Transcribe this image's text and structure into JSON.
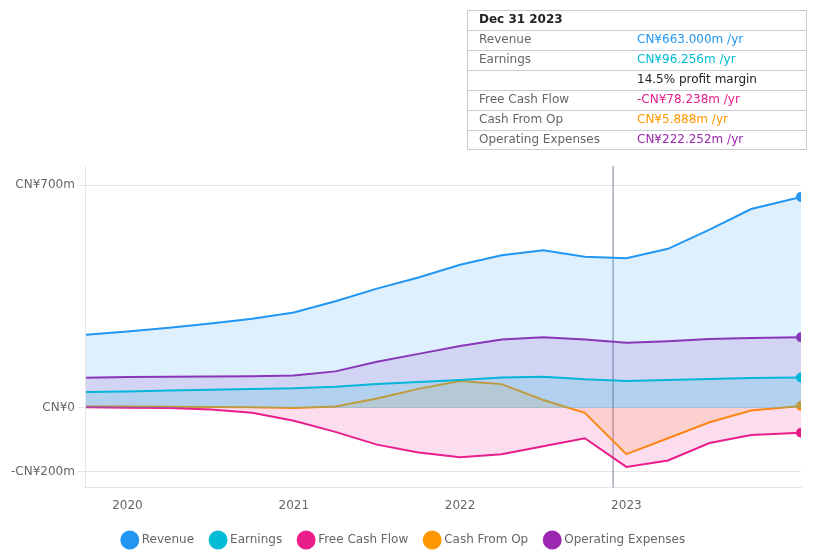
{
  "chart_data": {
    "type": "area",
    "x": [
      2019.75,
      2020.0,
      2020.25,
      2020.5,
      2020.75,
      2021.0,
      2021.25,
      2021.5,
      2021.75,
      2022.0,
      2022.25,
      2022.5,
      2022.75,
      2023.0,
      2023.25,
      2023.5,
      2023.75,
      2024.05
    ],
    "series": [
      {
        "name": "Revenue",
        "color": "#2196f3",
        "values": [
          230,
          240,
          252,
          265,
          280,
          300,
          335,
          375,
          410,
          450,
          480,
          495,
          475,
          470,
          500,
          560,
          625,
          663
        ]
      },
      {
        "name": "Earnings",
        "color": "#00bcd4",
        "values": [
          50,
          52,
          55,
          57,
          60,
          62,
          67,
          75,
          82,
          88,
          96,
          98,
          90,
          85,
          88,
          91,
          94,
          96
        ]
      },
      {
        "name": "Free Cash Flow",
        "color": "#e91e8c",
        "values": [
          2,
          1,
          0,
          -5,
          -15,
          -40,
          -75,
          -115,
          -140,
          -155,
          -145,
          -120,
          -95,
          -185,
          -165,
          -110,
          -85,
          -78
        ]
      },
      {
        "name": "Cash From Op",
        "color": "#ff9800",
        "values": [
          5,
          5,
          4,
          3,
          2,
          0,
          5,
          30,
          60,
          85,
          75,
          25,
          -15,
          -145,
          -95,
          -45,
          -8,
          6
        ]
      },
      {
        "name": "Operating Expenses",
        "color": "#9c27b0",
        "values": [
          95,
          97,
          98,
          99,
          100,
          102,
          115,
          145,
          170,
          195,
          215,
          222,
          215,
          205,
          210,
          217,
          220,
          222
        ]
      }
    ],
    "xlim": [
      2019.75,
      2024.05
    ],
    "xticks": [
      2020,
      2021,
      2022,
      2023
    ],
    "ylim": [
      -250,
      760
    ],
    "yticks": [
      {
        "value": -200,
        "label": "-CN¥200m"
      },
      {
        "value": 0,
        "label": "CN¥0"
      },
      {
        "value": 700,
        "label": "CN¥700m"
      }
    ],
    "grid": true,
    "legend": "bottom",
    "annotations": [
      {
        "x": 2022.92
      },
      {
        "rows": [
          [
            "Dec 31 2023"
          ],
          [
            "Revenue",
            "CN¥663.000m /yr"
          ],
          [
            "Earnings",
            "CN¥96.256m /yr"
          ],
          [
            "",
            "14.5% profit margin"
          ],
          [
            "Free Cash Flow",
            "-CN¥78.238m /yr"
          ],
          [
            "Cash From Op",
            "CN¥5.888m /yr"
          ],
          [
            "Operating Expenses",
            "CN¥222.252m /yr"
          ]
        ]
      }
    ]
  }
}
